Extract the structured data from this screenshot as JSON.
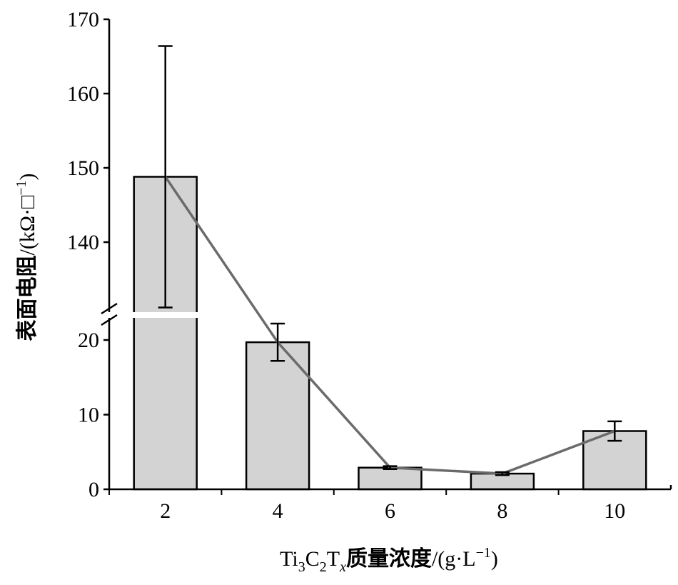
{
  "chart_data": {
    "type": "bar",
    "xlabel": {
      "prefix": "Ti",
      "sub1": "3",
      "mid": "C",
      "sub2": "2",
      "t": "T",
      "subx": "x",
      "cjk": "质量浓度",
      "unit_open": "/(g·L",
      "unit_sup": "−1",
      "unit_close": ")"
    },
    "ylabel": {
      "cjk": "表面电阻",
      "unit_open": "/(kΩ·□",
      "unit_sup": "−1",
      "unit_close": ")"
    },
    "categories": [
      "2",
      "4",
      "6",
      "8",
      "10"
    ],
    "values": [
      148.8,
      19.7,
      2.9,
      2.1,
      7.8
    ],
    "error": [
      17.6,
      2.5,
      0.2,
      0.2,
      1.3
    ],
    "line_overlay": true,
    "y_axis_broken": true,
    "y_lower_range": [
      0,
      25
    ],
    "y_upper_range": [
      130,
      170
    ],
    "y_lower_ticks": [
      "0",
      "10",
      "20"
    ],
    "y_upper_ticks": [
      "140",
      "150",
      "160",
      "170"
    ],
    "colors": {
      "bar_fill": "#d3d3d3",
      "bar_stroke": "#000000",
      "line": "#6b6b6b",
      "axis": "#000000"
    },
    "grid": false,
    "legend": "none"
  }
}
